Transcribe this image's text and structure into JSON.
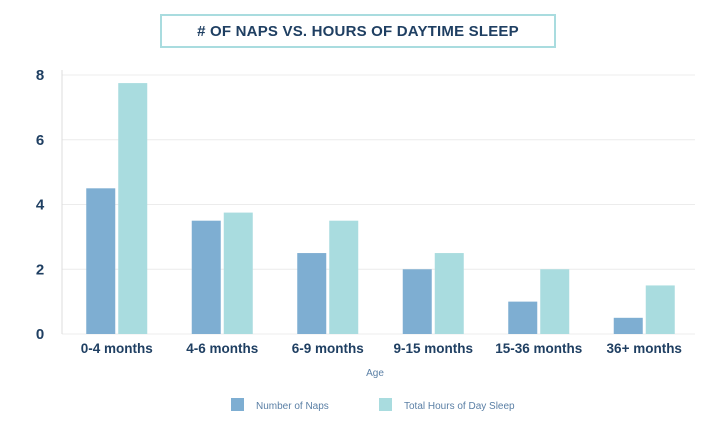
{
  "chart_data": {
    "type": "bar",
    "title": "# OF NAPS VS. HOURS OF DAYTIME SLEEP",
    "xlabel": "Age",
    "ylabel": "",
    "categories": [
      "0-4 months",
      "4-6 months",
      "6-9 months",
      "9-15 months",
      "15-36 months",
      "36+ months"
    ],
    "series": [
      {
        "name": "Number of Naps",
        "color": "#7eaed2",
        "values": [
          4.5,
          3.5,
          2.5,
          2,
          1,
          0.5
        ]
      },
      {
        "name": "Total Hours of Day Sleep",
        "color": "#a9dcdf",
        "values": [
          7.75,
          3.75,
          3.5,
          2.5,
          2,
          1.5
        ]
      }
    ],
    "ylim": [
      0,
      8
    ],
    "yticks": [
      0,
      2,
      4,
      6,
      8
    ],
    "grid": true,
    "legend_position": "bottom-center"
  }
}
